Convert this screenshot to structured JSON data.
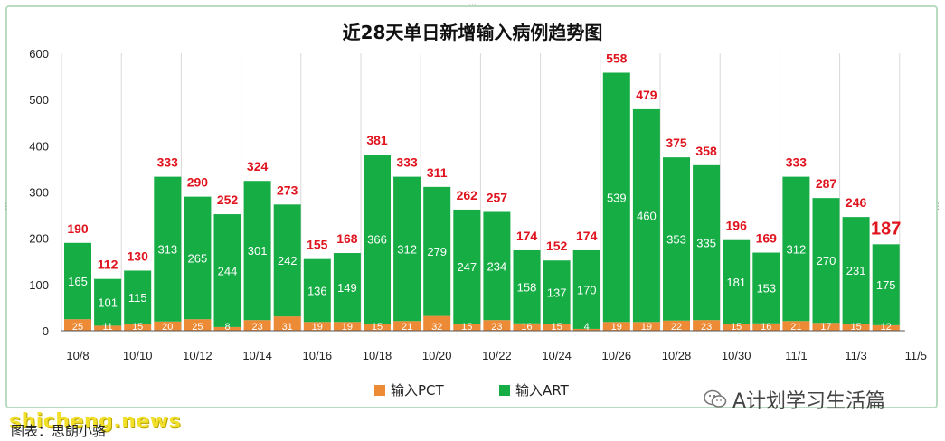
{
  "chart_data": {
    "type": "bar",
    "stacked": true,
    "title": "近28天单日新增输入病例趋势图",
    "categories": [
      "10/8",
      "10/9",
      "10/10",
      "10/11",
      "10/12",
      "10/13",
      "10/14",
      "10/15",
      "10/16",
      "10/17",
      "10/18",
      "10/19",
      "10/20",
      "10/21",
      "10/22",
      "10/23",
      "10/24",
      "10/25",
      "10/26",
      "10/27",
      "10/28",
      "10/29",
      "10/30",
      "10/31",
      "11/1",
      "11/2",
      "11/3",
      "11/4"
    ],
    "x_tick_labels": [
      "10/8",
      "10/10",
      "10/12",
      "10/14",
      "10/16",
      "10/18",
      "10/20",
      "10/22",
      "10/24",
      "10/26",
      "10/28",
      "10/30",
      "11/1",
      "11/3",
      "11/5"
    ],
    "y_ticks": [
      "0",
      "100",
      "200",
      "300",
      "400",
      "500",
      "600"
    ],
    "ylim": [
      0,
      600
    ],
    "totals": [
      190,
      112,
      130,
      333,
      290,
      252,
      324,
      273,
      155,
      168,
      381,
      333,
      311,
      262,
      257,
      174,
      152,
      174,
      558,
      479,
      375,
      358,
      196,
      169,
      333,
      287,
      246,
      187
    ],
    "series": [
      {
        "name": "输入PCT",
        "color": "#ed8a36",
        "values": [
          25,
          11,
          15,
          20,
          25,
          8,
          23,
          31,
          19,
          19,
          15,
          21,
          32,
          15,
          23,
          16,
          15,
          4,
          19,
          19,
          22,
          23,
          15,
          16,
          21,
          17,
          15,
          12
        ]
      },
      {
        "name": "输入ART",
        "color": "#16ad45",
        "values": [
          165,
          101,
          115,
          313,
          265,
          244,
          301,
          242,
          136,
          149,
          366,
          312,
          279,
          247,
          234,
          158,
          137,
          170,
          539,
          460,
          353,
          335,
          181,
          153,
          312,
          270,
          231,
          175
        ]
      }
    ],
    "total_label_color": "#e0141e",
    "legend_position": "bottom",
    "grid": "vertical"
  },
  "wechat_label": "A计划学习生活篇",
  "watermark": "shicheng.news",
  "caption": "图表：思朗小骆"
}
